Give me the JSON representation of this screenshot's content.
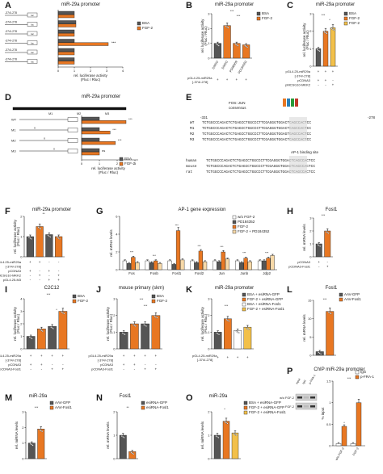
{
  "colors": {
    "bsa": "#555555",
    "fgf": "#e87722",
    "light": "#f2c04a",
    "pale": "#f7d9a8",
    "white": "#ffffff",
    "black": "#222222"
  },
  "panels": {
    "A": {
      "letter": "A",
      "title": "miR-29a promoter",
      "xlabel": "rel. luciferase activity",
      "xlabel2": "(Fluc / Rluc)",
      "xticks": [
        "0",
        "1",
        "2",
        "3",
        "4"
      ],
      "constructs": [
        "-374/-278",
        "-374/-278",
        "-374/-278",
        "-374/-278",
        "-374/-278",
        "-374/-278"
      ]
    },
    "B": {
      "letter": "B",
      "title": "miR-29a promoter",
      "legend": [
        "BSA",
        "FGF-2"
      ],
      "ylabel": "rel. luciferase activity",
      "ylabel2": "(Fluc / Rluc)",
      "xlabels": [
        "DMSO",
        "DMSO",
        "PD98059",
        "PD184352"
      ],
      "row1": "pGL4.25-miR29a",
      "row1b": "[-374/-278]"
    },
    "C": {
      "letter": "C",
      "title": "miR-29a promoter",
      "legend": [
        "BSA",
        "FGF-2",
        "FGF-2"
      ],
      "ylabel": "rel. luciferase activity",
      "ylabel2": "(Fluc / Rluc)",
      "rows": [
        "pGL4.25-miR29a",
        "[-374/-278]",
        "pCDNA3",
        "pMCSG10-MKK2"
      ]
    },
    "D": {
      "letter": "D",
      "title": "miR-29a promoter",
      "rows": [
        "WT",
        "M1",
        "M2",
        "M3"
      ],
      "boxes": [
        "M1",
        "M2",
        "M3"
      ],
      "legend": [
        "BSA",
        "FGF-2"
      ],
      "xlabel": "rel. luciferase activity",
      "xlabel2": "(Fluc / Rluc)",
      "xticks": [
        "0",
        "1",
        "2",
        "3"
      ]
    },
    "E": {
      "letter": "E",
      "consensus_label": "FOS::JUN",
      "consensus_label2": "consensus",
      "coord_left": "-331",
      "coord_right": "-278",
      "seqs": [
        {
          "name": "WT",
          "seq": "TCTGGCCCAGACTCTGAGCCTGGCCCTTCGAGGGTGGACTCAGCCACTCC"
        },
        {
          "name": "M1",
          "seq": "TCTGGCCCAGACTCTGAGCCTGGCCCTTCGAGGGTGGACTCAGCCACTCC"
        },
        {
          "name": "M2",
          "seq": "TCTGGCCCAGACTCTGAGCCTGGCCCTTCGAGGGTGGAGTGAGCCACTCC"
        },
        {
          "name": "M3",
          "seq": "TCTGGCCCAGACTCTGAGCCTGGCCCTTCGAGGGTGGACTCAGCCACTCC"
        }
      ],
      "ap1_label": "AP-1 binding site",
      "species": [
        {
          "name": "human",
          "seq": "TCTGGCCCAGACTCTGAGCCTGGCCCTTCGAGGGTGGACTCAGCCACTCC"
        },
        {
          "name": "mouse",
          "seq": "TCTGGCCCAGACTCTGAGCCTGGCCCTTCGAGGGTGGACTCAGCCACTCC"
        },
        {
          "name": "rat",
          "seq": "TCTGGCCCAGACTCTGAGCCTGGCCCTTCGAGGGTGGACTCAGCCACTCC"
        }
      ]
    },
    "F": {
      "letter": "F",
      "title": "miR-29a promoter",
      "ylabel": "rel. luciferase activity",
      "ylabel2": "(Fluc / Rluc)",
      "rows": [
        "pGL4.25-miR29a",
        "[-374/-278]",
        "pCDNA3",
        "pMCSG10-MKK2",
        "pGL4.25-M3"
      ]
    },
    "G": {
      "letter": "G",
      "title": "AP-1 gene expression",
      "ylabel": "rel. mRNA levels",
      "legend": [
        "w/o FGF-2",
        "PD184352",
        "FGF-2",
        "FGF-2 + PD184352"
      ],
      "genes": [
        "Fos",
        "Fosb",
        "Fosl1",
        "Fosl2",
        "Jun",
        "Junb",
        "Jdp2"
      ]
    },
    "H": {
      "letter": "H",
      "title": "Fosl1",
      "ylabel": "rel. mRNA levels",
      "rows": [
        "pCDNA3",
        "pCDNA3-Fosl1"
      ]
    },
    "I": {
      "letter": "I",
      "title": "C2C12",
      "legend": [
        "BSA",
        "FGF-2"
      ],
      "ylabel": "rel. luciferase activity",
      "ylabel2": "(Fluc / Rluc)",
      "rows": [
        "pGL4.25-miR29a",
        "[-374/-278]",
        "pCDNA3",
        "pCDNA3-Fosl1"
      ]
    },
    "J": {
      "letter": "J",
      "title": "mouse primary (skm)",
      "legend": [
        "BSA",
        "FGF-2"
      ],
      "ylabel": "rel. luciferase activity",
      "ylabel2": "(Fluc / Rluc)",
      "rows": [
        "pGL4.25-miR29a",
        "[-374/-278]",
        "pCDNA3",
        "pCDNA3-Fosl1"
      ]
    },
    "K": {
      "letter": "K",
      "title": "miR-29a promoter",
      "legend": [
        "BSA + esiRNA-GFP",
        "FGF-2 + esiRNA-GFP",
        "BSA + esiRNA-Fosl1",
        "FGF-2 + esiRNA-Fosl1"
      ],
      "ylabel": "rel. luciferase activity",
      "ylabel2": "(Fluc / Rluc)",
      "rows": [
        "pGL4.25-miR29a",
        "[-374/-278]"
      ]
    },
    "L": {
      "letter": "L",
      "title": "Fosl1",
      "legend": [
        "AAV-GFP",
        "AAV-Fosl1"
      ],
      "ylabel": "rel. mRNA levels"
    },
    "M": {
      "letter": "M",
      "title": "miR-29a",
      "legend": [
        "AAV-GFP",
        "AAV-Fosl1"
      ],
      "ylabel": "rel. miRNA levels"
    },
    "N": {
      "letter": "N",
      "title": "Fosl1",
      "legend": [
        "esiRNA-GFP",
        "esiRNA-Fosl1"
      ],
      "ylabel": "rel. mRNA levels"
    },
    "O": {
      "letter": "O",
      "title": "miR-29a",
      "legend": [
        "BSA + esiRNA-GFP",
        "FGF-2 + esiRNA-GFP",
        "FGF-2 + esiRNA-Fosl1"
      ],
      "ylabel": "rel. miRNA levels"
    },
    "P": {
      "letter": "P",
      "title": "ChIP miR-29a promoter",
      "legend": [
        "IgG",
        "p-FRA-1"
      ],
      "ylabel": "% input",
      "blot_rows": [
        "w/o FGF-2",
        "FGF-2"
      ],
      "blot_cols": [
        "input",
        "IgG",
        "p-FRA-1"
      ],
      "xlabels": [
        "w/o FGF-2",
        "FGF-2"
      ]
    }
  },
  "chart_data": [
    {
      "panel": "A",
      "type": "bar",
      "series": [
        {
          "name": "BSA",
          "values": [
            1.0,
            1.1,
            1.0,
            1.0,
            1.0,
            1.0
          ]
        },
        {
          "name": "FGF-2",
          "values": [
            1.0,
            1.1,
            1.0,
            3.1,
            1.0,
            1.0
          ]
        }
      ],
      "xlim": [
        0,
        4
      ]
    },
    {
      "panel": "B",
      "type": "bar",
      "categories": [
        "BSA DMSO",
        "FGF-2 DMSO",
        "FGF-2 PD98059",
        "FGF-2 PD184352"
      ],
      "values": [
        1.0,
        2.2,
        1.0,
        0.9
      ],
      "ylim": [
        0,
        3
      ]
    },
    {
      "panel": "C",
      "type": "bar",
      "categories": [
        "BSA",
        "FGF-2",
        "FGF-2 MKK2"
      ],
      "values": [
        1.0,
        2.0,
        2.2
      ],
      "ylim": [
        0,
        3
      ]
    },
    {
      "panel": "D",
      "type": "bar",
      "series": [
        {
          "name": "BSA",
          "values": [
            1.0,
            1.0,
            1.0,
            1.0
          ]
        },
        {
          "name": "FGF-2",
          "values": [
            2.5,
            1.6,
            1.9,
            1.0
          ]
        }
      ],
      "xlim": [
        0,
        3
      ]
    },
    {
      "panel": "F",
      "type": "bar",
      "values": [
        1.0,
        1.5,
        1.1,
        1.0
      ],
      "ylim": [
        0,
        2
      ]
    },
    {
      "panel": "G",
      "type": "bar",
      "categories": [
        "Fos",
        "Fosb",
        "Fosl1",
        "Fosl2",
        "Jun",
        "Junb",
        "Jdp2"
      ],
      "series": [
        {
          "name": "w/o FGF-2",
          "values": [
            1.0,
            1.0,
            1.0,
            1.0,
            1.0,
            1.0,
            1.0
          ]
        },
        {
          "name": "PD184352",
          "values": [
            0.7,
            0.8,
            0.6,
            0.8,
            0.9,
            0.8,
            1.0
          ]
        },
        {
          "name": "FGF-2",
          "values": [
            1.4,
            1.0,
            4.4,
            2.1,
            2.0,
            1.3,
            1.3
          ]
        },
        {
          "name": "FGF-2 + PD184352",
          "values": [
            0.8,
            0.7,
            1.1,
            0.9,
            1.2,
            0.9,
            1.6
          ]
        }
      ],
      "ylim": [
        0,
        6
      ]
    },
    {
      "panel": "H",
      "type": "bar",
      "categories": [
        "pCDNA3",
        "pCDNA3-Fosl1"
      ],
      "values": [
        1.0,
        2.0
      ],
      "ylim": [
        0,
        3
      ]
    },
    {
      "panel": "I",
      "type": "bar",
      "values": [
        1.0,
        1.6,
        1.8,
        3.0
      ],
      "ylim": [
        0,
        4
      ]
    },
    {
      "panel": "J",
      "type": "bar",
      "values": [
        1.0,
        1.5,
        1.5,
        2.0
      ],
      "ylim": [
        0,
        3
      ]
    },
    {
      "panel": "K",
      "type": "bar",
      "values": [
        1.0,
        1.8,
        1.1,
        1.3
      ],
      "ylim": [
        0,
        3
      ]
    },
    {
      "panel": "L",
      "type": "bar",
      "categories": [
        "AAV-GFP",
        "AAV-Fosl1"
      ],
      "values": [
        1.0,
        12.0
      ],
      "ylim": [
        0,
        15
      ]
    },
    {
      "panel": "M",
      "type": "bar",
      "categories": [
        "AAV-GFP",
        "AAV-Fosl1"
      ],
      "values": [
        1.0,
        1.9
      ],
      "ylim": [
        0,
        3
      ]
    },
    {
      "panel": "N",
      "type": "bar",
      "categories": [
        "esiRNA-GFP",
        "esiRNA-Fosl1"
      ],
      "values": [
        1.0,
        0.3
      ],
      "ylim": [
        0,
        2
      ]
    },
    {
      "panel": "O",
      "type": "bar",
      "values": [
        1.0,
        1.6,
        1.1
      ],
      "ylim": [
        0,
        2
      ]
    },
    {
      "panel": "P",
      "type": "bar",
      "categories": [
        "w/o FGF-2",
        "FGF-2"
      ],
      "series": [
        {
          "name": "IgG",
          "values": [
            0.05,
            0.05
          ]
        },
        {
          "name": "p-FRA-1",
          "values": [
            0.45,
            1.0
          ]
        }
      ],
      "ylim": [
        0,
        1.5
      ]
    }
  ]
}
